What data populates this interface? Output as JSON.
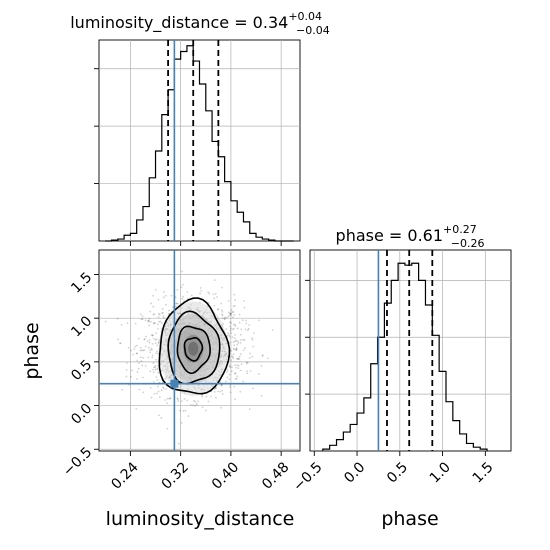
{
  "colors": {
    "truth": "#4682b4",
    "hist": "#000000",
    "grid": "#b0b0b0",
    "points": "#000000"
  },
  "panels": {
    "top": {
      "title_main": "luminosity_distance = 0.34",
      "title_sup": "+0.04",
      "title_sub": "−0.04"
    },
    "right": {
      "title_main": "phase = 0.61",
      "title_sup": "+0.27",
      "title_sub": "−0.26"
    }
  },
  "chart_data": [
    {
      "type": "histogram",
      "panel": "luminosity_distance marginal",
      "xlim": [
        0.19,
        0.51
      ],
      "ylim": [
        0,
        0.105
      ],
      "x_ticks": [
        0.24,
        0.32,
        0.4,
        0.48
      ],
      "grid": true,
      "bin_edges": [
        0.2,
        0.21,
        0.22,
        0.23,
        0.24,
        0.25,
        0.26,
        0.27,
        0.28,
        0.29,
        0.3,
        0.31,
        0.32,
        0.33,
        0.34,
        0.35,
        0.36,
        0.37,
        0.38,
        0.39,
        0.4,
        0.41,
        0.42,
        0.43,
        0.44,
        0.45,
        0.46,
        0.47,
        0.48,
        0.49,
        0.5
      ],
      "counts": [
        0,
        0.0005,
        0.001,
        0.003,
        0.004,
        0.011,
        0.018,
        0.033,
        0.047,
        0.066,
        0.079,
        0.095,
        0.099,
        0.102,
        0.094,
        0.082,
        0.068,
        0.052,
        0.044,
        0.031,
        0.021,
        0.015,
        0.01,
        0.004,
        0.002,
        0.001,
        0.0005,
        0,
        0,
        0
      ],
      "quantiles": [
        0.3,
        0.34,
        0.38
      ],
      "truth": 0.31
    },
    {
      "type": "scatter+contour",
      "panel": "phase vs luminosity_distance",
      "xlabel": "luminosity_distance",
      "ylabel": "phase",
      "xlim": [
        0.19,
        0.51
      ],
      "ylim": [
        -0.52,
        1.78
      ],
      "x_ticks": [
        0.24,
        0.32,
        0.4,
        0.48
      ],
      "y_ticks": [
        -0.5,
        0.0,
        0.5,
        1.0,
        1.5
      ],
      "grid": true,
      "truth": {
        "x": 0.31,
        "y": 0.25
      },
      "center": {
        "x": 0.34,
        "y": 0.65
      },
      "contour_levels": [
        {
          "sx": 0.014,
          "sy": 0.13
        },
        {
          "sx": 0.026,
          "sy": 0.26
        },
        {
          "sx": 0.041,
          "sy": 0.4
        },
        {
          "sx": 0.055,
          "sy": 0.54
        }
      ]
    },
    {
      "type": "histogram",
      "panel": "phase marginal",
      "xlabel": "phase",
      "xlim": [
        -0.55,
        1.8
      ],
      "ylim": [
        0,
        0.106
      ],
      "x_ticks": [
        -0.5,
        0.0,
        0.5,
        1.0,
        1.5
      ],
      "grid": true,
      "bin_edges": [
        -0.4,
        -0.32,
        -0.24,
        -0.16,
        -0.08,
        0.0,
        0.08,
        0.16,
        0.24,
        0.32,
        0.4,
        0.48,
        0.56,
        0.64,
        0.72,
        0.8,
        0.88,
        0.96,
        1.04,
        1.12,
        1.2,
        1.28,
        1.36,
        1.44,
        1.52
      ],
      "counts": [
        0.001,
        0.003,
        0.006,
        0.01,
        0.014,
        0.02,
        0.028,
        0.046,
        0.06,
        0.078,
        0.09,
        0.099,
        0.098,
        0.099,
        0.09,
        0.077,
        0.061,
        0.042,
        0.026,
        0.016,
        0.009,
        0.004,
        0.002,
        0.001
      ],
      "quantiles": [
        0.35,
        0.61,
        0.88
      ],
      "truth": 0.25
    }
  ]
}
